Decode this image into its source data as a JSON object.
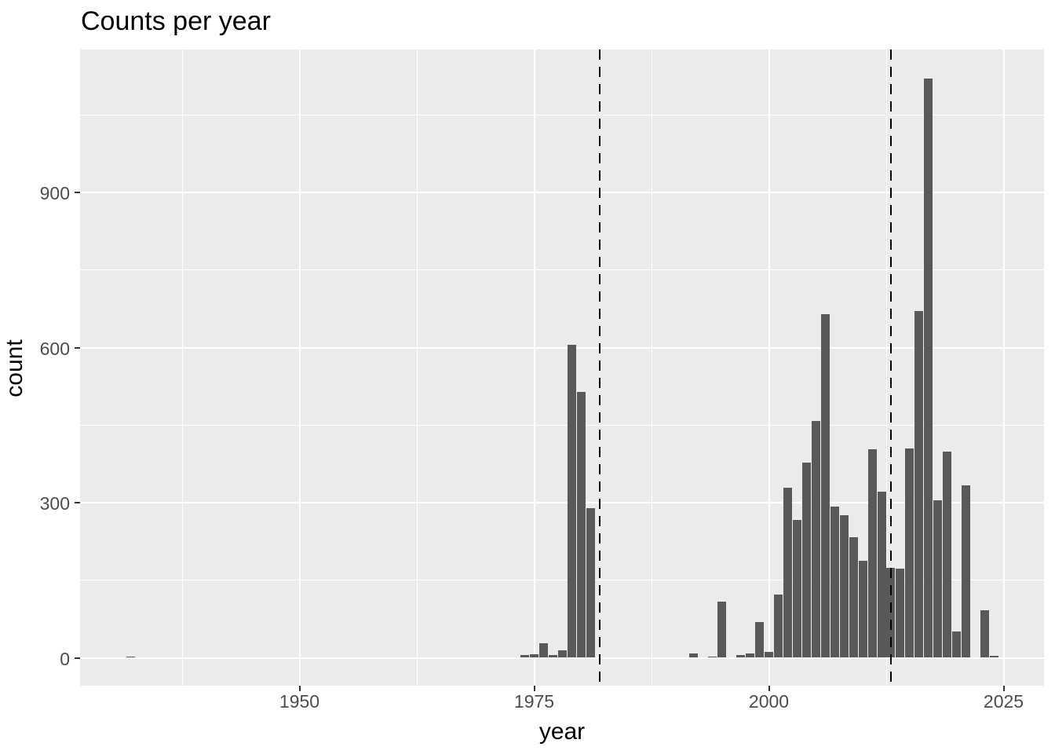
{
  "title": "Counts per year",
  "chart_data": {
    "type": "bar",
    "subtype": "histogram",
    "title": "Counts per year",
    "xlabel": "year",
    "ylabel": "count",
    "binwidth": 1,
    "x": [
      1932,
      1974,
      1975,
      1976,
      1977,
      1978,
      1979,
      1980,
      1981,
      1992,
      1994,
      1995,
      1997,
      1998,
      1999,
      2000,
      2001,
      2002,
      2003,
      2004,
      2005,
      2006,
      2007,
      2008,
      2009,
      2010,
      2011,
      2012,
      2013,
      2014,
      2015,
      2016,
      2017,
      2018,
      2019,
      2020,
      2021,
      2023,
      2024
    ],
    "values": [
      3,
      5,
      7,
      28,
      5,
      15,
      605,
      514,
      290,
      9,
      2,
      109,
      5,
      8,
      69,
      11,
      123,
      329,
      266,
      378,
      458,
      665,
      293,
      276,
      233,
      188,
      404,
      322,
      174,
      173,
      405,
      670,
      1120,
      304,
      399,
      51,
      333,
      92,
      4
    ],
    "vlines": [
      1982,
      2013
    ],
    "vline_style": "black dashed, full panel height",
    "x_ticks_major": [
      1950,
      1975,
      2000,
      2025
    ],
    "x_ticks_minor": [
      1937.5,
      1962.5,
      1987.5,
      2012.5
    ],
    "y_ticks_major": [
      0,
      300,
      600,
      900
    ],
    "y_ticks_minor": [
      150,
      450,
      750,
      1050
    ],
    "xlim": [
      1926.6,
      2029.4
    ],
    "ylim": [
      -56,
      1176
    ],
    "grid": "white major+minor gridlines on gray panel",
    "legend": false,
    "colors": {
      "bar": "#595959",
      "panel_bg": "#EBEBEB",
      "gridline": "#FFFFFF",
      "reference_line": "#000000",
      "axis_text": "#4D4D4D",
      "title_text": "#000000",
      "tick_mark": "#333333",
      "page_bg": "#FFFFFF"
    }
  }
}
